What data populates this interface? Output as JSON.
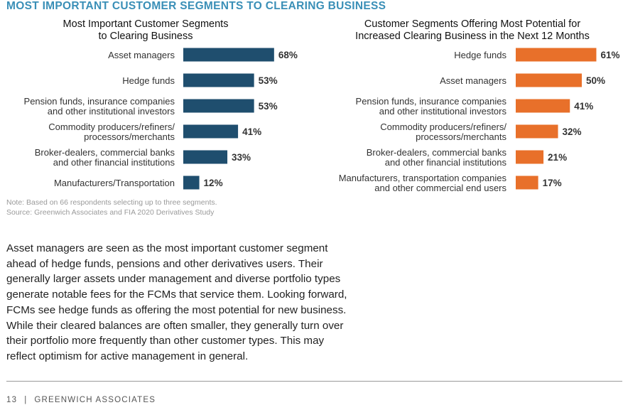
{
  "page": {
    "main_title": "MOST IMPORTANT CUSTOMER SEGMENTS TO CLEARING BUSINESS",
    "title_color": "#3a8fb7",
    "note_line1": "Note: Based on 66 respondents selecting up to three segments.",
    "note_line2": "Source: Greenwich Associates and FIA 2020 Derivatives Study",
    "body_lines": [
      "Asset managers are seen as the most important customer segment",
      "ahead of hedge funds, pensions and other derivatives users. Their",
      "generally larger assets under management and diverse portfolio types",
      "generate notable fees for the FCMs that service them. Looking forward,",
      "FCMs see hedge funds as offering the most potential for new business.",
      "While their cleared balances are often smaller, they generally turn over",
      "their portfolio more frequently than other customer types. This may",
      "reflect optimism for active management in general."
    ],
    "footer_page": "13",
    "footer_sep": "|",
    "footer_company": "GREENWICH ASSOCIATES"
  },
  "chart_data": [
    {
      "type": "bar",
      "orientation": "horizontal",
      "title_lines": [
        "Most Important Customer Segments",
        "to Clearing Business"
      ],
      "categories": [
        [
          "Asset managers"
        ],
        [
          "Hedge funds"
        ],
        [
          "Pension funds, insurance companies",
          "and other institutional investors"
        ],
        [
          "Commodity producers/refiners/",
          "processors/merchants"
        ],
        [
          "Broker-dealers, commercial banks",
          "and other financial institutions"
        ],
        [
          "Manufacturers/Transportation"
        ]
      ],
      "values": [
        68,
        53,
        53,
        41,
        33,
        12
      ],
      "value_suffix": "%",
      "xlim": [
        0,
        100
      ],
      "color": "#1f4e6e"
    },
    {
      "type": "bar",
      "orientation": "horizontal",
      "title_lines": [
        "Customer Segments Offering Most Potential for",
        "Increased Clearing Business in the Next 12 Months"
      ],
      "categories": [
        [
          "Hedge funds"
        ],
        [
          "Asset managers"
        ],
        [
          "Pension funds, insurance companies",
          "and other institutional investors"
        ],
        [
          "Commodity producers/refiners/",
          "processors/merchants"
        ],
        [
          "Broker-dealers, commercial banks",
          "and other financial institutions"
        ],
        [
          "Manufacturers, transportation companies",
          "and other commercial end users"
        ]
      ],
      "values": [
        61,
        50,
        41,
        32,
        21,
        17
      ],
      "value_suffix": "%",
      "xlim": [
        0,
        100
      ],
      "color": "#e8702a"
    }
  ]
}
